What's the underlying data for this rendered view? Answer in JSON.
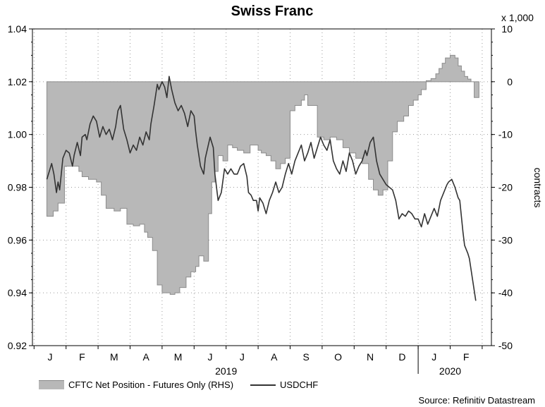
{
  "chart_data": {
    "type": "line",
    "title": "Swiss Franc",
    "left_axis": {
      "ylim": [
        0.92,
        1.04
      ],
      "ticks": [
        "0.92",
        "0.94",
        "0.96",
        "0.98",
        "1.00",
        "1.02",
        "1.04"
      ]
    },
    "right_axis": {
      "label": "contracts",
      "multiplier_label": "x 1,000",
      "ylim": [
        -50,
        10
      ],
      "ticks": [
        "-50",
        "-40",
        "-30",
        "-20",
        "-10",
        "0",
        "10"
      ]
    },
    "x_axis": {
      "month_labels": [
        "J",
        "F",
        "M",
        "A",
        "M",
        "J",
        "J",
        "A",
        "S",
        "O",
        "N",
        "D",
        "J",
        "F"
      ],
      "year_labels": [
        "2019",
        "2020"
      ]
    },
    "grid": true,
    "legend_position": "bottom-left",
    "series": [
      {
        "name": "CFTC Net Position - Futures Only (RHS)",
        "kind": "step-area",
        "axis": "right",
        "color": "#b8b8b8",
        "points": [
          [
            -0.1,
            -25.5
          ],
          [
            0.1,
            -24.5
          ],
          [
            0.25,
            -23
          ],
          [
            0.45,
            -16
          ],
          [
            0.6,
            -16
          ],
          [
            0.9,
            -17
          ],
          [
            1.0,
            -18
          ],
          [
            1.2,
            -18.5
          ],
          [
            1.45,
            -19
          ],
          [
            1.6,
            -21.5
          ],
          [
            1.75,
            -24
          ],
          [
            2.0,
            -24.5
          ],
          [
            2.2,
            -24
          ],
          [
            2.4,
            -27
          ],
          [
            2.6,
            -27.3
          ],
          [
            2.8,
            -27
          ],
          [
            2.95,
            -28.5
          ],
          [
            3.05,
            -29.5
          ],
          [
            3.2,
            -32
          ],
          [
            3.35,
            -38.5
          ],
          [
            3.5,
            -40
          ],
          [
            3.75,
            -40.3
          ],
          [
            3.9,
            -40
          ],
          [
            4.05,
            -39
          ],
          [
            4.25,
            -37
          ],
          [
            4.4,
            -36
          ],
          [
            4.55,
            -35
          ],
          [
            4.65,
            -33
          ],
          [
            4.8,
            -34
          ],
          [
            4.95,
            -25
          ],
          [
            5.05,
            -19
          ],
          [
            5.15,
            -17
          ],
          [
            5.25,
            -14
          ],
          [
            5.4,
            -15
          ],
          [
            5.55,
            -12
          ],
          [
            5.7,
            -12.5
          ],
          [
            5.85,
            -13
          ],
          [
            6.05,
            -13.5
          ],
          [
            6.25,
            -12
          ],
          [
            6.4,
            -12
          ],
          [
            6.5,
            -13
          ],
          [
            6.6,
            -13.5
          ],
          [
            6.75,
            -14
          ],
          [
            6.9,
            -15
          ],
          [
            7.05,
            -16.5
          ],
          [
            7.2,
            -15.5
          ],
          [
            7.35,
            -14.5
          ],
          [
            7.5,
            -5.5
          ],
          [
            7.65,
            -4.5
          ],
          [
            7.75,
            -4.5
          ],
          [
            7.85,
            -3.5
          ],
          [
            7.95,
            -2.5
          ],
          [
            8.05,
            -4.5
          ],
          [
            8.15,
            -4.5
          ],
          [
            8.35,
            -10.5
          ],
          [
            8.55,
            -11
          ],
          [
            8.75,
            -10.5
          ],
          [
            8.95,
            -11
          ],
          [
            9.15,
            -12.5
          ],
          [
            9.35,
            -13.5
          ],
          [
            9.55,
            -14.5
          ],
          [
            9.75,
            -15.5
          ],
          [
            9.95,
            -18.5
          ],
          [
            10.1,
            -20.5
          ],
          [
            10.25,
            -21.5
          ],
          [
            10.4,
            -20.5
          ],
          [
            10.55,
            -15
          ],
          [
            10.7,
            -9.5
          ],
          [
            10.85,
            -7.5
          ],
          [
            11.05,
            -6.5
          ],
          [
            11.2,
            -4.5
          ],
          [
            11.35,
            -3.5
          ],
          [
            11.5,
            -2.5
          ],
          [
            11.6,
            -1.5
          ],
          [
            11.75,
            0.2
          ],
          [
            11.9,
            0.6
          ],
          [
            12.05,
            1.5
          ],
          [
            12.15,
            2.5
          ],
          [
            12.25,
            3.5
          ],
          [
            12.35,
            4.5
          ],
          [
            12.5,
            5
          ],
          [
            12.65,
            4.5
          ],
          [
            12.75,
            3
          ],
          [
            12.85,
            2
          ],
          [
            12.95,
            1
          ],
          [
            13.05,
            0.5
          ],
          [
            13.15,
            0
          ],
          [
            13.25,
            -3
          ],
          [
            13.4,
            -3
          ]
        ]
      },
      {
        "name": "USDCHF",
        "kind": "line",
        "axis": "left",
        "color": "#333333",
        "points": [
          [
            -0.1,
            0.983
          ],
          [
            0.0,
            0.987
          ],
          [
            0.05,
            0.989
          ],
          [
            0.12,
            0.985
          ],
          [
            0.2,
            0.978
          ],
          [
            0.25,
            0.982
          ],
          [
            0.3,
            0.979
          ],
          [
            0.35,
            0.985
          ],
          [
            0.4,
            0.991
          ],
          [
            0.5,
            0.994
          ],
          [
            0.6,
            0.993
          ],
          [
            0.7,
            0.988
          ],
          [
            0.75,
            0.992
          ],
          [
            0.85,
            0.997
          ],
          [
            0.95,
            0.992
          ],
          [
            1.0,
            0.999
          ],
          [
            1.1,
            1.0
          ],
          [
            1.15,
            0.998
          ],
          [
            1.25,
            1.004
          ],
          [
            1.35,
            1.007
          ],
          [
            1.45,
            1.005
          ],
          [
            1.55,
            0.999
          ],
          [
            1.65,
            1.003
          ],
          [
            1.75,
            1.0
          ],
          [
            1.85,
            1.002
          ],
          [
            1.95,
            0.998
          ],
          [
            2.05,
            1.003
          ],
          [
            2.12,
            1.009
          ],
          [
            2.2,
            1.011
          ],
          [
            2.3,
            1.002
          ],
          [
            2.4,
            0.998
          ],
          [
            2.5,
            0.993
          ],
          [
            2.6,
            0.996
          ],
          [
            2.7,
            0.994
          ],
          [
            2.8,
            0.999
          ],
          [
            2.9,
            0.996
          ],
          [
            3.0,
            1.001
          ],
          [
            3.1,
            0.998
          ],
          [
            3.15,
            1.004
          ],
          [
            3.25,
            1.011
          ],
          [
            3.35,
            1.019
          ],
          [
            3.4,
            1.017
          ],
          [
            3.5,
            1.02
          ],
          [
            3.58,
            1.018
          ],
          [
            3.65,
            1.014
          ],
          [
            3.72,
            1.022
          ],
          [
            3.8,
            1.017
          ],
          [
            3.9,
            1.012
          ],
          [
            4.0,
            1.009
          ],
          [
            4.1,
            1.011
          ],
          [
            4.2,
            1.008
          ],
          [
            4.3,
            1.003
          ],
          [
            4.4,
            1.009
          ],
          [
            4.5,
            1.007
          ],
          [
            4.55,
            1.001
          ],
          [
            4.6,
            0.996
          ],
          [
            4.7,
            0.988
          ],
          [
            4.8,
            0.985
          ],
          [
            4.85,
            0.991
          ],
          [
            5.0,
            0.999
          ],
          [
            5.1,
            0.995
          ],
          [
            5.15,
            0.985
          ],
          [
            5.25,
            0.975
          ],
          [
            5.35,
            0.978
          ],
          [
            5.45,
            0.987
          ],
          [
            5.55,
            0.985
          ],
          [
            5.65,
            0.987
          ],
          [
            5.75,
            0.985
          ],
          [
            5.85,
            0.985
          ],
          [
            5.95,
            0.988
          ],
          [
            6.05,
            0.989
          ],
          [
            6.15,
            0.984
          ],
          [
            6.2,
            0.978
          ],
          [
            6.28,
            0.977
          ],
          [
            6.35,
            0.975
          ],
          [
            6.45,
            0.975
          ],
          [
            6.5,
            0.971
          ],
          [
            6.55,
            0.976
          ],
          [
            6.65,
            0.974
          ],
          [
            6.75,
            0.97
          ],
          [
            6.85,
            0.975
          ],
          [
            6.95,
            0.978
          ],
          [
            7.05,
            0.982
          ],
          [
            7.15,
            0.978
          ],
          [
            7.25,
            0.98
          ],
          [
            7.35,
            0.985
          ],
          [
            7.45,
            0.989
          ],
          [
            7.55,
            0.985
          ],
          [
            7.65,
            0.99
          ],
          [
            7.75,
            0.993
          ],
          [
            7.85,
            0.996
          ],
          [
            7.95,
            0.99
          ],
          [
            8.05,
            0.993
          ],
          [
            8.15,
            0.997
          ],
          [
            8.25,
            0.991
          ],
          [
            8.35,
            0.995
          ],
          [
            8.45,
            0.999
          ],
          [
            8.55,
            0.996
          ],
          [
            8.65,
            0.994
          ],
          [
            8.75,
            0.998
          ],
          [
            8.85,
            0.99
          ],
          [
            8.95,
            0.987
          ],
          [
            9.05,
            0.985
          ],
          [
            9.15,
            0.99
          ],
          [
            9.25,
            0.986
          ],
          [
            9.35,
            0.993
          ],
          [
            9.45,
            0.99
          ],
          [
            9.55,
            0.985
          ],
          [
            9.65,
            0.988
          ],
          [
            9.75,
            0.99
          ],
          [
            9.85,
            0.994
          ],
          [
            9.9,
            0.992
          ],
          [
            10.0,
            0.997
          ],
          [
            10.1,
            0.999
          ],
          [
            10.2,
            0.99
          ],
          [
            10.3,
            0.985
          ],
          [
            10.4,
            0.983
          ],
          [
            10.5,
            0.981
          ],
          [
            10.6,
            0.98
          ],
          [
            10.7,
            0.979
          ],
          [
            10.8,
            0.975
          ],
          [
            10.9,
            0.968
          ],
          [
            11.0,
            0.97
          ],
          [
            11.1,
            0.969
          ],
          [
            11.2,
            0.971
          ],
          [
            11.3,
            0.97
          ],
          [
            11.4,
            0.968
          ],
          [
            11.5,
            0.968
          ],
          [
            11.6,
            0.965
          ],
          [
            11.7,
            0.97
          ],
          [
            11.8,
            0.966
          ],
          [
            11.9,
            0.969
          ],
          [
            12.0,
            0.972
          ],
          [
            12.1,
            0.969
          ],
          [
            12.2,
            0.975
          ],
          [
            12.3,
            0.978
          ],
          [
            12.4,
            0.981
          ],
          [
            12.45,
            0.982
          ],
          [
            12.55,
            0.983
          ],
          [
            12.65,
            0.98
          ],
          [
            12.75,
            0.976
          ],
          [
            12.8,
            0.975
          ],
          [
            12.9,
            0.963
          ],
          [
            12.95,
            0.958
          ],
          [
            13.05,
            0.955
          ],
          [
            13.1,
            0.953
          ],
          [
            13.2,
            0.945
          ],
          [
            13.3,
            0.937
          ]
        ]
      }
    ]
  },
  "source": "Source: Refinitiv Datastream"
}
